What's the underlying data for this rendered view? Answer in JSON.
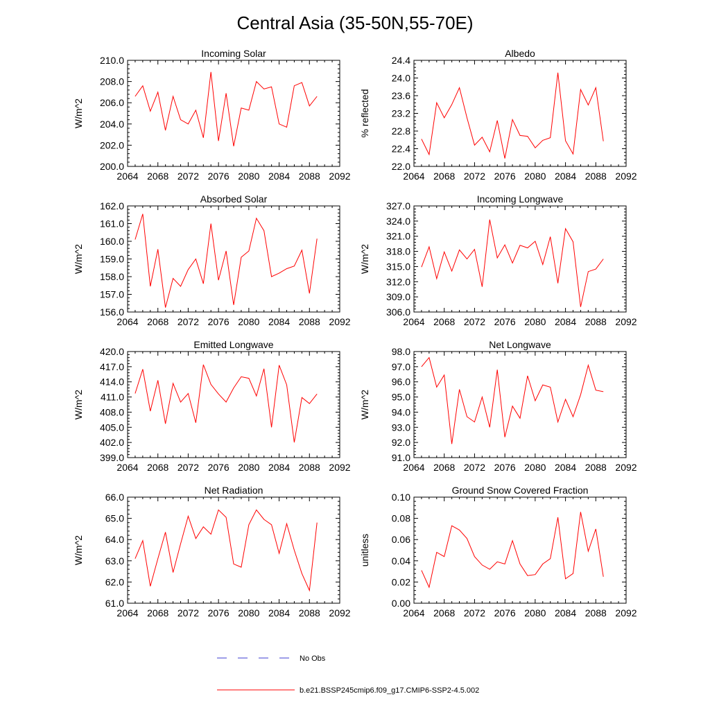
{
  "figure": {
    "title": "Central Asia (35-50N,55-70E)"
  },
  "chart_data": [
    {
      "type": "line",
      "title": "Incoming Solar",
      "xlabel": "",
      "ylabel": "W/m^2",
      "xlim": [
        2064,
        2092
      ],
      "ylim": [
        200.0,
        210.0
      ],
      "xticks": [
        "2064",
        "2068",
        "2072",
        "2076",
        "2080",
        "2084",
        "2088",
        "2092"
      ],
      "yticks": [
        "200.0",
        "202.0",
        "204.0",
        "206.0",
        "208.0",
        "210.0"
      ],
      "x": [
        2065,
        2066,
        2067,
        2068,
        2069,
        2070,
        2071,
        2072,
        2073,
        2074,
        2075,
        2076,
        2077,
        2078,
        2079,
        2080,
        2081,
        2082,
        2083,
        2084,
        2085,
        2086,
        2087,
        2088,
        2089
      ],
      "series": [
        {
          "values": [
            206.6,
            207.6,
            205.2,
            207.0,
            203.4,
            206.6,
            204.4,
            204.0,
            205.3,
            202.7,
            208.9,
            202.4,
            206.9,
            201.9,
            205.5,
            205.3,
            208.0,
            207.3,
            207.5,
            204.0,
            203.7,
            207.6,
            207.9,
            205.7,
            206.6
          ]
        }
      ]
    },
    {
      "type": "line",
      "title": "Albedo",
      "xlabel": "",
      "ylabel": "% reflected",
      "xlim": [
        2064,
        2092
      ],
      "ylim": [
        22.0,
        24.4
      ],
      "xticks": [
        "2064",
        "2068",
        "2072",
        "2076",
        "2080",
        "2084",
        "2088",
        "2092"
      ],
      "yticks": [
        "22.0",
        "22.4",
        "22.8",
        "23.2",
        "23.6",
        "24.0",
        "24.4"
      ],
      "x": [
        2065,
        2066,
        2067,
        2068,
        2069,
        2070,
        2071,
        2072,
        2073,
        2074,
        2075,
        2076,
        2077,
        2078,
        2079,
        2080,
        2081,
        2082,
        2083,
        2084,
        2085,
        2086,
        2087,
        2088,
        2089
      ],
      "series": [
        {
          "values": [
            22.62,
            22.27,
            23.44,
            23.1,
            23.4,
            23.78,
            23.1,
            22.48,
            22.66,
            22.33,
            23.04,
            22.18,
            23.06,
            22.7,
            22.68,
            22.42,
            22.59,
            22.65,
            24.12,
            22.58,
            22.28,
            23.74,
            23.39,
            23.78,
            22.57
          ]
        }
      ]
    },
    {
      "type": "line",
      "title": "Absorbed Solar",
      "xlabel": "",
      "ylabel": "W/m^2",
      "xlim": [
        2064,
        2092
      ],
      "ylim": [
        156.0,
        162.0
      ],
      "xticks": [
        "2064",
        "2068",
        "2072",
        "2076",
        "2080",
        "2084",
        "2088",
        "2092"
      ],
      "yticks": [
        "156.0",
        "157.0",
        "158.0",
        "159.0",
        "160.0",
        "161.0",
        "162.0"
      ],
      "x": [
        2065,
        2066,
        2067,
        2068,
        2069,
        2070,
        2071,
        2072,
        2073,
        2074,
        2075,
        2076,
        2077,
        2078,
        2079,
        2080,
        2081,
        2082,
        2083,
        2084,
        2085,
        2086,
        2087,
        2088,
        2089
      ],
      "series": [
        {
          "values": [
            160.1,
            161.55,
            157.45,
            159.55,
            156.25,
            157.9,
            157.45,
            158.4,
            159.0,
            157.6,
            161.0,
            157.8,
            159.45,
            156.4,
            159.1,
            159.45,
            161.3,
            160.6,
            158.0,
            158.2,
            158.45,
            158.6,
            159.5,
            157.05,
            160.15
          ]
        }
      ]
    },
    {
      "type": "line",
      "title": "Incoming Longwave",
      "xlabel": "",
      "ylabel": "W/m^2",
      "xlim": [
        2064,
        2092
      ],
      "ylim": [
        306.0,
        327.0
      ],
      "xticks": [
        "2064",
        "2068",
        "2072",
        "2076",
        "2080",
        "2084",
        "2088",
        "2092"
      ],
      "yticks": [
        "306.0",
        "309.0",
        "312.0",
        "315.0",
        "318.0",
        "321.0",
        "324.0",
        "327.0"
      ],
      "x": [
        2065,
        2066,
        2067,
        2068,
        2069,
        2070,
        2071,
        2072,
        2073,
        2074,
        2075,
        2076,
        2077,
        2078,
        2079,
        2080,
        2081,
        2082,
        2083,
        2084,
        2085,
        2086,
        2087,
        2088,
        2089
      ],
      "series": [
        {
          "values": [
            314.9,
            318.9,
            312.6,
            317.9,
            314.1,
            318.3,
            316.5,
            318.4,
            311.0,
            324.3,
            316.7,
            319.3,
            315.7,
            319.2,
            318.7,
            320.0,
            315.4,
            320.9,
            311.7,
            322.5,
            319.9,
            307.0,
            314.0,
            314.5,
            316.5
          ]
        }
      ]
    },
    {
      "type": "line",
      "title": "Emitted Longwave",
      "xlabel": "",
      "ylabel": "W/m^2",
      "xlim": [
        2064,
        2092
      ],
      "ylim": [
        399.0,
        420.0
      ],
      "xticks": [
        "2064",
        "2068",
        "2072",
        "2076",
        "2080",
        "2084",
        "2088",
        "2092"
      ],
      "yticks": [
        "399.0",
        "402.0",
        "405.0",
        "408.0",
        "411.0",
        "414.0",
        "417.0",
        "420.0"
      ],
      "x": [
        2065,
        2066,
        2067,
        2068,
        2069,
        2070,
        2071,
        2072,
        2073,
        2074,
        2075,
        2076,
        2077,
        2078,
        2079,
        2080,
        2081,
        2082,
        2083,
        2084,
        2085,
        2086,
        2087,
        2088,
        2089
      ],
      "series": [
        {
          "values": [
            411.7,
            416.5,
            408.2,
            414.3,
            405.7,
            413.7,
            410.0,
            411.7,
            405.9,
            417.4,
            413.5,
            411.6,
            410.0,
            412.8,
            415.0,
            414.7,
            411.2,
            416.6,
            405.0,
            417.3,
            413.4,
            402.0,
            410.9,
            409.7,
            411.6
          ]
        }
      ]
    },
    {
      "type": "line",
      "title": "Net Longwave",
      "xlabel": "",
      "ylabel": "W/m^2",
      "xlim": [
        2064,
        2092
      ],
      "ylim": [
        91.0,
        98.0
      ],
      "xticks": [
        "2064",
        "2068",
        "2072",
        "2076",
        "2080",
        "2084",
        "2088",
        "2092"
      ],
      "yticks": [
        "91.0",
        "92.0",
        "93.0",
        "94.0",
        "95.0",
        "96.0",
        "97.0",
        "98.0"
      ],
      "x": [
        2065,
        2066,
        2067,
        2068,
        2069,
        2070,
        2071,
        2072,
        2073,
        2074,
        2075,
        2076,
        2077,
        2078,
        2079,
        2080,
        2081,
        2082,
        2083,
        2084,
        2085,
        2086,
        2087,
        2088,
        2089
      ],
      "series": [
        {
          "values": [
            97.0,
            97.6,
            95.65,
            96.45,
            91.9,
            95.5,
            93.7,
            93.35,
            95.0,
            93.0,
            96.8,
            92.35,
            94.4,
            93.6,
            96.4,
            94.75,
            95.8,
            95.65,
            93.35,
            94.85,
            93.7,
            95.15,
            97.1,
            95.45,
            95.35
          ]
        }
      ]
    },
    {
      "type": "line",
      "title": "Net Radiation",
      "xlabel": "",
      "ylabel": "W/m^2",
      "xlim": [
        2064,
        2092
      ],
      "ylim": [
        61.0,
        66.0
      ],
      "xticks": [
        "2064",
        "2068",
        "2072",
        "2076",
        "2080",
        "2084",
        "2088",
        "2092"
      ],
      "yticks": [
        "61.0",
        "62.0",
        "63.0",
        "64.0",
        "65.0",
        "66.0"
      ],
      "x": [
        2065,
        2066,
        2067,
        2068,
        2069,
        2070,
        2071,
        2072,
        2073,
        2074,
        2075,
        2076,
        2077,
        2078,
        2079,
        2080,
        2081,
        2082,
        2083,
        2084,
        2085,
        2086,
        2087,
        2088,
        2089
      ],
      "series": [
        {
          "values": [
            63.1,
            63.95,
            61.8,
            63.1,
            64.35,
            62.45,
            63.8,
            65.1,
            64.05,
            64.6,
            64.25,
            65.4,
            65.05,
            62.85,
            62.7,
            64.7,
            65.4,
            64.95,
            64.7,
            63.35,
            64.75,
            63.5,
            62.4,
            61.6,
            64.8
          ]
        }
      ]
    },
    {
      "type": "line",
      "title": "Ground Snow Covered Fraction",
      "xlabel": "",
      "ylabel": "unitless",
      "xlim": [
        2064,
        2092
      ],
      "ylim": [
        0.0,
        0.1
      ],
      "xticks": [
        "2064",
        "2068",
        "2072",
        "2076",
        "2080",
        "2084",
        "2088",
        "2092"
      ],
      "yticks": [
        "0.00",
        "0.02",
        "0.04",
        "0.06",
        "0.08",
        "0.10"
      ],
      "x": [
        2065,
        2066,
        2067,
        2068,
        2069,
        2070,
        2071,
        2072,
        2073,
        2074,
        2075,
        2076,
        2077,
        2078,
        2079,
        2080,
        2081,
        2082,
        2083,
        2084,
        2085,
        2086,
        2087,
        2088,
        2089
      ],
      "series": [
        {
          "values": [
            0.031,
            0.015,
            0.048,
            0.044,
            0.073,
            0.069,
            0.061,
            0.044,
            0.036,
            0.032,
            0.039,
            0.037,
            0.059,
            0.037,
            0.026,
            0.027,
            0.037,
            0.042,
            0.081,
            0.023,
            0.028,
            0.086,
            0.049,
            0.07,
            0.025
          ]
        }
      ]
    }
  ],
  "legend": {
    "position": "bottom-center",
    "entries": [
      {
        "label": "No Obs",
        "color": "#3b3bd0",
        "style": "dashed"
      },
      {
        "label": "b.e21.BSSP245cmip6.f09_g17.CMIP6-SSP2-4.5.002",
        "color": "#ff0000",
        "style": "solid"
      }
    ]
  },
  "colors": {
    "series": "#ff0000",
    "axes": "#000000"
  }
}
